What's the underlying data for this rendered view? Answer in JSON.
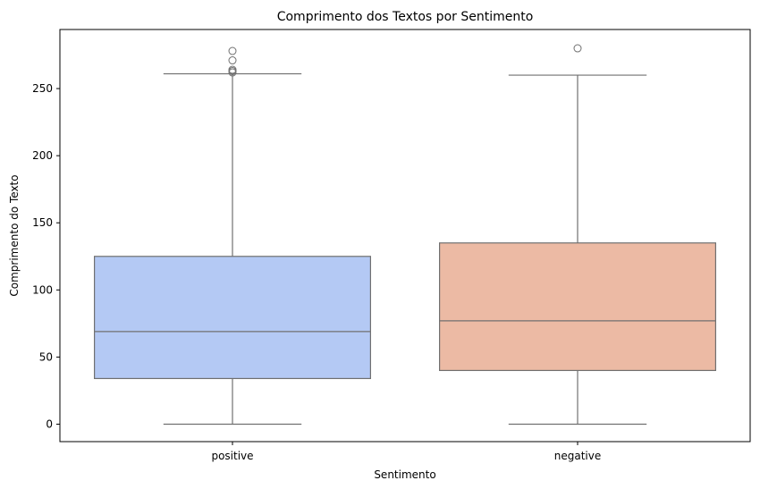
{
  "chart_data": {
    "type": "box",
    "title": "Comprimento dos Textos por Sentimento",
    "xlabel": "Sentimento",
    "ylabel": "Comprimento do Texto",
    "ylim": [
      -13,
      294
    ],
    "yticks": [
      0,
      50,
      100,
      150,
      200,
      250
    ],
    "grid": false,
    "categories": [
      "positive",
      "negative"
    ],
    "boxes": [
      {
        "category": "positive",
        "color": "#b4c9f4",
        "min": 0,
        "q1": 34,
        "median": 69,
        "q3": 125,
        "max": 261,
        "outliers": [
          262,
          263,
          264,
          271,
          278
        ]
      },
      {
        "category": "negative",
        "color": "#ecbaa4",
        "min": 0,
        "q1": 40,
        "median": 77,
        "q3": 135,
        "max": 260,
        "outliers": [
          280
        ]
      }
    ]
  }
}
